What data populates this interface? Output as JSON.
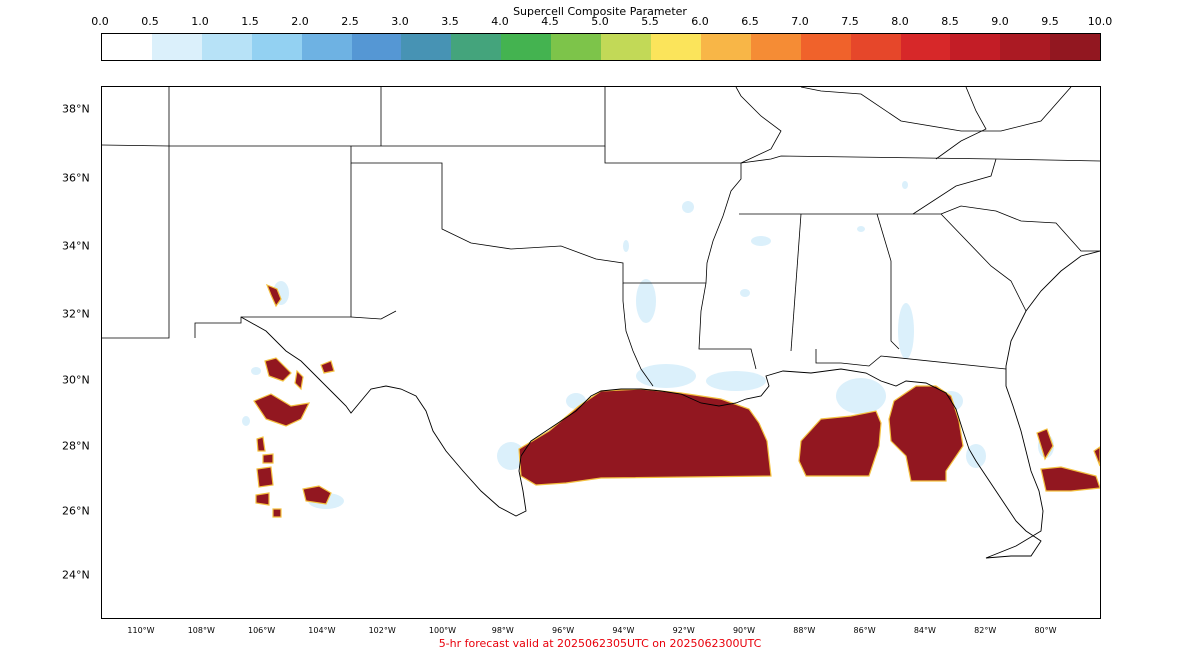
{
  "colorbar": {
    "title": "Supercell Composite Parameter",
    "ticks": [
      "0.0",
      "0.5",
      "1.0",
      "1.5",
      "2.0",
      "2.5",
      "3.0",
      "3.5",
      "4.0",
      "4.5",
      "5.0",
      "5.5",
      "6.0",
      "6.5",
      "7.0",
      "7.5",
      "8.0",
      "8.5",
      "9.0",
      "9.5",
      "10.0"
    ],
    "colors": [
      "#ffffff",
      "#dbf0fb",
      "#b7e2f7",
      "#93d1f2",
      "#6eb2e3",
      "#5597d4",
      "#4793b4",
      "#44a47c",
      "#44b350",
      "#7dc44a",
      "#c2d957",
      "#fbe45b",
      "#f8b647",
      "#f58c35",
      "#f0622b",
      "#e6472a",
      "#d72829",
      "#c31d26",
      "#ab1a23",
      "#921720"
    ]
  },
  "map": {
    "lat_labels": [
      "38°N",
      "36°N",
      "34°N",
      "32°N",
      "30°N",
      "28°N",
      "26°N",
      "24°N"
    ],
    "lon_labels": [
      "110°W",
      "108°W",
      "106°W",
      "104°W",
      "102°W",
      "100°W",
      "98°W",
      "96°W",
      "94°W",
      "92°W",
      "90°W",
      "88°W",
      "86°W",
      "84°W",
      "82°W",
      "80°W"
    ],
    "high_color": "#921720",
    "low_color": "#dbf0fb"
  },
  "caption": "5-hr forecast valid at 2025062305UTC on 2025062300UTC"
}
